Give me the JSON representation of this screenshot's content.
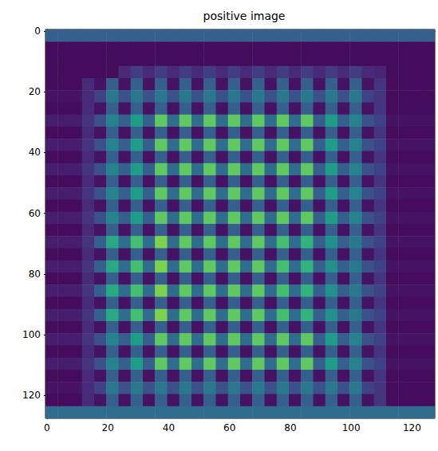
{
  "chart_data": {
    "type": "heatmap",
    "title": "positive image",
    "color": "viridis",
    "value_range": [
      0,
      1
    ],
    "xlim": [
      -0.5,
      127.5
    ],
    "ylim": [
      127.5,
      -0.5
    ],
    "xticks": [
      0,
      20,
      40,
      60,
      80,
      100,
      120
    ],
    "yticks": [
      0,
      20,
      40,
      60,
      80,
      100,
      120
    ],
    "x_edges": [
      -0.5,
      3.5,
      7.5,
      11.5,
      15.5,
      19.5,
      23.5,
      27.5,
      31.5,
      35.5,
      39.5,
      43.5,
      47.5,
      51.5,
      55.5,
      59.5,
      63.5,
      67.5,
      71.5,
      75.5,
      79.5,
      83.5,
      87.5,
      91.5,
      95.5,
      99.5,
      103.5,
      107.5,
      111.5,
      115.5,
      119.5,
      123.5,
      127.5
    ],
    "y_edges": [
      -0.5,
      3.5,
      7.5,
      11.5,
      15.5,
      19.5,
      23.5,
      27.5,
      31.5,
      35.5,
      39.5,
      43.5,
      47.5,
      51.5,
      55.5,
      59.5,
      63.5,
      67.5,
      71.5,
      75.5,
      79.5,
      83.5,
      87.5,
      91.5,
      95.5,
      99.5,
      103.5,
      107.5,
      111.5,
      115.5,
      119.5,
      123.5,
      127.5
    ],
    "cells": [
      [
        0.3,
        0.3,
        0.3,
        0.3,
        0.3,
        0.3,
        0.3,
        0.3,
        0.3,
        0.3,
        0.3,
        0.3,
        0.3,
        0.3,
        0.3,
        0.3,
        0.3,
        0.3,
        0.3,
        0.3,
        0.3,
        0.3,
        0.3,
        0.3,
        0.3,
        0.3,
        0.3,
        0.3,
        0.3,
        0.3,
        0.3,
        0.3
      ],
      [
        0.03,
        0.03,
        0.03,
        0.03,
        0.03,
        0.03,
        0.03,
        0.03,
        0.03,
        0.03,
        0.03,
        0.03,
        0.03,
        0.03,
        0.03,
        0.03,
        0.03,
        0.03,
        0.03,
        0.03,
        0.03,
        0.03,
        0.03,
        0.03,
        0.03,
        0.03,
        0.03,
        0.03,
        0.03,
        0.03,
        0.03,
        0.03
      ],
      [
        0.03,
        0.03,
        0.03,
        0.03,
        0.03,
        0.03,
        0.03,
        0.03,
        0.03,
        0.03,
        0.03,
        0.03,
        0.03,
        0.03,
        0.03,
        0.03,
        0.03,
        0.03,
        0.03,
        0.03,
        0.03,
        0.03,
        0.03,
        0.03,
        0.03,
        0.03,
        0.03,
        0.03,
        0.03,
        0.03,
        0.03,
        0.03
      ],
      [
        0.03,
        0.03,
        0.03,
        0.03,
        0.03,
        0.03,
        0.12,
        0.18,
        0.12,
        0.18,
        0.12,
        0.18,
        0.12,
        0.18,
        0.12,
        0.18,
        0.12,
        0.18,
        0.12,
        0.18,
        0.12,
        0.18,
        0.12,
        0.18,
        0.12,
        0.18,
        0.12,
        0.1,
        0.03,
        0.03,
        0.03,
        0.03
      ],
      [
        0.03,
        0.03,
        0.03,
        0.12,
        0.05,
        0.3,
        0.05,
        0.3,
        0.05,
        0.3,
        0.05,
        0.3,
        0.05,
        0.3,
        0.05,
        0.3,
        0.05,
        0.3,
        0.05,
        0.3,
        0.05,
        0.3,
        0.05,
        0.3,
        0.05,
        0.3,
        0.05,
        0.15,
        0.03,
        0.03,
        0.03,
        0.03
      ],
      [
        0.05,
        0.05,
        0.05,
        0.12,
        0.2,
        0.4,
        0.25,
        0.4,
        0.25,
        0.4,
        0.25,
        0.4,
        0.25,
        0.4,
        0.25,
        0.4,
        0.25,
        0.4,
        0.25,
        0.4,
        0.25,
        0.4,
        0.25,
        0.4,
        0.25,
        0.4,
        0.2,
        0.15,
        0.03,
        0.03,
        0.03,
        0.03
      ],
      [
        0.03,
        0.03,
        0.03,
        0.12,
        0.05,
        0.3,
        0.05,
        0.3,
        0.05,
        0.3,
        0.05,
        0.3,
        0.05,
        0.3,
        0.05,
        0.3,
        0.05,
        0.3,
        0.05,
        0.3,
        0.05,
        0.3,
        0.05,
        0.3,
        0.05,
        0.3,
        0.05,
        0.15,
        0.03,
        0.03,
        0.03,
        0.03
      ],
      [
        0.08,
        0.08,
        0.08,
        0.15,
        0.25,
        0.45,
        0.3,
        0.55,
        0.3,
        0.75,
        0.35,
        0.75,
        0.35,
        0.75,
        0.35,
        0.75,
        0.35,
        0.75,
        0.35,
        0.75,
        0.35,
        0.75,
        0.3,
        0.55,
        0.3,
        0.45,
        0.25,
        0.2,
        0.05,
        0.05,
        0.05,
        0.05
      ],
      [
        0.03,
        0.03,
        0.03,
        0.12,
        0.05,
        0.3,
        0.05,
        0.3,
        0.05,
        0.3,
        0.05,
        0.3,
        0.05,
        0.3,
        0.05,
        0.3,
        0.05,
        0.3,
        0.05,
        0.3,
        0.05,
        0.3,
        0.05,
        0.3,
        0.05,
        0.3,
        0.05,
        0.15,
        0.03,
        0.03,
        0.03,
        0.03
      ],
      [
        0.08,
        0.08,
        0.08,
        0.15,
        0.25,
        0.45,
        0.3,
        0.55,
        0.3,
        0.75,
        0.35,
        0.75,
        0.35,
        0.75,
        0.35,
        0.75,
        0.35,
        0.75,
        0.35,
        0.75,
        0.35,
        0.75,
        0.3,
        0.55,
        0.3,
        0.45,
        0.25,
        0.2,
        0.05,
        0.05,
        0.05,
        0.05
      ],
      [
        0.03,
        0.03,
        0.03,
        0.12,
        0.05,
        0.3,
        0.05,
        0.3,
        0.05,
        0.3,
        0.05,
        0.3,
        0.05,
        0.3,
        0.05,
        0.3,
        0.05,
        0.3,
        0.05,
        0.3,
        0.05,
        0.3,
        0.05,
        0.3,
        0.05,
        0.3,
        0.05,
        0.15,
        0.03,
        0.03,
        0.03,
        0.03
      ],
      [
        0.08,
        0.08,
        0.08,
        0.15,
        0.25,
        0.45,
        0.3,
        0.55,
        0.3,
        0.75,
        0.35,
        0.75,
        0.35,
        0.75,
        0.35,
        0.75,
        0.35,
        0.75,
        0.35,
        0.75,
        0.35,
        0.75,
        0.3,
        0.55,
        0.3,
        0.45,
        0.25,
        0.2,
        0.05,
        0.05,
        0.05,
        0.05
      ],
      [
        0.03,
        0.03,
        0.03,
        0.12,
        0.05,
        0.3,
        0.05,
        0.3,
        0.05,
        0.3,
        0.05,
        0.3,
        0.05,
        0.3,
        0.05,
        0.3,
        0.05,
        0.3,
        0.05,
        0.3,
        0.05,
        0.3,
        0.05,
        0.3,
        0.05,
        0.3,
        0.05,
        0.15,
        0.03,
        0.03,
        0.03,
        0.03
      ],
      [
        0.08,
        0.08,
        0.08,
        0.15,
        0.25,
        0.45,
        0.3,
        0.55,
        0.3,
        0.75,
        0.35,
        0.75,
        0.35,
        0.75,
        0.35,
        0.75,
        0.35,
        0.75,
        0.35,
        0.75,
        0.35,
        0.75,
        0.3,
        0.55,
        0.3,
        0.45,
        0.25,
        0.2,
        0.05,
        0.05,
        0.05,
        0.05
      ],
      [
        0.03,
        0.03,
        0.03,
        0.12,
        0.05,
        0.3,
        0.05,
        0.3,
        0.05,
        0.3,
        0.05,
        0.3,
        0.05,
        0.3,
        0.05,
        0.3,
        0.05,
        0.3,
        0.05,
        0.3,
        0.05,
        0.3,
        0.05,
        0.3,
        0.05,
        0.3,
        0.05,
        0.15,
        0.03,
        0.03,
        0.03,
        0.03
      ],
      [
        0.08,
        0.08,
        0.08,
        0.15,
        0.25,
        0.45,
        0.3,
        0.55,
        0.3,
        0.75,
        0.35,
        0.75,
        0.35,
        0.75,
        0.35,
        0.75,
        0.35,
        0.75,
        0.35,
        0.75,
        0.35,
        0.75,
        0.3,
        0.55,
        0.3,
        0.45,
        0.25,
        0.2,
        0.05,
        0.05,
        0.05,
        0.05
      ],
      [
        0.03,
        0.03,
        0.03,
        0.12,
        0.05,
        0.3,
        0.05,
        0.3,
        0.05,
        0.3,
        0.05,
        0.3,
        0.05,
        0.3,
        0.05,
        0.3,
        0.05,
        0.3,
        0.05,
        0.3,
        0.05,
        0.3,
        0.05,
        0.3,
        0.05,
        0.3,
        0.05,
        0.15,
        0.03,
        0.03,
        0.03,
        0.03
      ],
      [
        0.08,
        0.08,
        0.08,
        0.15,
        0.3,
        0.6,
        0.35,
        0.7,
        0.35,
        0.8,
        0.35,
        0.75,
        0.35,
        0.75,
        0.35,
        0.75,
        0.35,
        0.75,
        0.35,
        0.7,
        0.35,
        0.65,
        0.3,
        0.5,
        0.3,
        0.4,
        0.25,
        0.2,
        0.05,
        0.05,
        0.05,
        0.05
      ],
      [
        0.03,
        0.03,
        0.03,
        0.12,
        0.05,
        0.3,
        0.05,
        0.3,
        0.05,
        0.3,
        0.05,
        0.3,
        0.05,
        0.3,
        0.05,
        0.3,
        0.05,
        0.3,
        0.05,
        0.3,
        0.05,
        0.3,
        0.05,
        0.3,
        0.05,
        0.3,
        0.05,
        0.15,
        0.03,
        0.03,
        0.03,
        0.03
      ],
      [
        0.08,
        0.08,
        0.08,
        0.15,
        0.3,
        0.6,
        0.35,
        0.7,
        0.35,
        0.8,
        0.35,
        0.75,
        0.35,
        0.75,
        0.35,
        0.75,
        0.35,
        0.75,
        0.35,
        0.7,
        0.35,
        0.65,
        0.3,
        0.5,
        0.3,
        0.4,
        0.25,
        0.2,
        0.05,
        0.05,
        0.05,
        0.05
      ],
      [
        0.03,
        0.03,
        0.03,
        0.12,
        0.05,
        0.3,
        0.05,
        0.3,
        0.05,
        0.3,
        0.05,
        0.3,
        0.05,
        0.3,
        0.05,
        0.3,
        0.05,
        0.3,
        0.05,
        0.3,
        0.05,
        0.3,
        0.05,
        0.3,
        0.05,
        0.3,
        0.05,
        0.15,
        0.03,
        0.03,
        0.03,
        0.03
      ],
      [
        0.08,
        0.08,
        0.08,
        0.15,
        0.3,
        0.6,
        0.35,
        0.7,
        0.35,
        0.8,
        0.35,
        0.75,
        0.35,
        0.75,
        0.35,
        0.75,
        0.35,
        0.75,
        0.35,
        0.7,
        0.35,
        0.65,
        0.3,
        0.5,
        0.3,
        0.4,
        0.25,
        0.2,
        0.05,
        0.05,
        0.05,
        0.05
      ],
      [
        0.03,
        0.03,
        0.03,
        0.12,
        0.05,
        0.3,
        0.05,
        0.3,
        0.05,
        0.3,
        0.05,
        0.3,
        0.05,
        0.3,
        0.05,
        0.3,
        0.05,
        0.3,
        0.05,
        0.3,
        0.05,
        0.3,
        0.05,
        0.3,
        0.05,
        0.3,
        0.05,
        0.15,
        0.03,
        0.03,
        0.03,
        0.03
      ],
      [
        0.08,
        0.08,
        0.08,
        0.15,
        0.3,
        0.6,
        0.35,
        0.7,
        0.35,
        0.8,
        0.35,
        0.75,
        0.35,
        0.75,
        0.35,
        0.75,
        0.35,
        0.75,
        0.35,
        0.7,
        0.35,
        0.65,
        0.3,
        0.5,
        0.3,
        0.4,
        0.25,
        0.2,
        0.05,
        0.05,
        0.05,
        0.05
      ],
      [
        0.03,
        0.03,
        0.03,
        0.12,
        0.05,
        0.3,
        0.05,
        0.3,
        0.05,
        0.3,
        0.05,
        0.3,
        0.05,
        0.3,
        0.05,
        0.3,
        0.05,
        0.3,
        0.05,
        0.3,
        0.05,
        0.3,
        0.05,
        0.3,
        0.05,
        0.3,
        0.05,
        0.15,
        0.03,
        0.03,
        0.03,
        0.03
      ],
      [
        0.08,
        0.08,
        0.08,
        0.15,
        0.25,
        0.45,
        0.3,
        0.55,
        0.3,
        0.75,
        0.35,
        0.75,
        0.35,
        0.75,
        0.35,
        0.75,
        0.35,
        0.75,
        0.35,
        0.75,
        0.35,
        0.75,
        0.3,
        0.55,
        0.3,
        0.45,
        0.25,
        0.2,
        0.05,
        0.05,
        0.05,
        0.05
      ],
      [
        0.03,
        0.03,
        0.03,
        0.12,
        0.05,
        0.3,
        0.05,
        0.3,
        0.05,
        0.3,
        0.05,
        0.3,
        0.05,
        0.3,
        0.05,
        0.3,
        0.05,
        0.3,
        0.05,
        0.3,
        0.05,
        0.3,
        0.05,
        0.3,
        0.05,
        0.3,
        0.05,
        0.15,
        0.03,
        0.03,
        0.03,
        0.03
      ],
      [
        0.08,
        0.08,
        0.08,
        0.15,
        0.25,
        0.45,
        0.3,
        0.55,
        0.3,
        0.75,
        0.35,
        0.75,
        0.35,
        0.75,
        0.35,
        0.75,
        0.35,
        0.75,
        0.35,
        0.75,
        0.35,
        0.75,
        0.3,
        0.55,
        0.3,
        0.45,
        0.25,
        0.2,
        0.05,
        0.05,
        0.05,
        0.05
      ],
      [
        0.03,
        0.03,
        0.03,
        0.12,
        0.05,
        0.3,
        0.05,
        0.3,
        0.05,
        0.3,
        0.05,
        0.3,
        0.05,
        0.3,
        0.05,
        0.3,
        0.05,
        0.3,
        0.05,
        0.3,
        0.05,
        0.3,
        0.05,
        0.3,
        0.05,
        0.3,
        0.05,
        0.15,
        0.03,
        0.03,
        0.03,
        0.03
      ],
      [
        0.05,
        0.05,
        0.05,
        0.12,
        0.2,
        0.4,
        0.25,
        0.4,
        0.25,
        0.4,
        0.25,
        0.4,
        0.25,
        0.4,
        0.25,
        0.4,
        0.25,
        0.4,
        0.25,
        0.4,
        0.25,
        0.4,
        0.25,
        0.4,
        0.25,
        0.4,
        0.2,
        0.15,
        0.03,
        0.03,
        0.03,
        0.03
      ],
      [
        0.03,
        0.03,
        0.03,
        0.12,
        0.05,
        0.3,
        0.05,
        0.3,
        0.05,
        0.3,
        0.05,
        0.3,
        0.05,
        0.3,
        0.05,
        0.3,
        0.05,
        0.3,
        0.05,
        0.3,
        0.05,
        0.3,
        0.05,
        0.3,
        0.05,
        0.3,
        0.05,
        0.15,
        0.03,
        0.03,
        0.03,
        0.03
      ],
      [
        0.35,
        0.35,
        0.35,
        0.35,
        0.35,
        0.35,
        0.35,
        0.35,
        0.35,
        0.35,
        0.35,
        0.35,
        0.35,
        0.35,
        0.35,
        0.35,
        0.35,
        0.35,
        0.35,
        0.35,
        0.35,
        0.35,
        0.35,
        0.35,
        0.35,
        0.35,
        0.35,
        0.35,
        0.35,
        0.35,
        0.35,
        0.35
      ]
    ]
  }
}
